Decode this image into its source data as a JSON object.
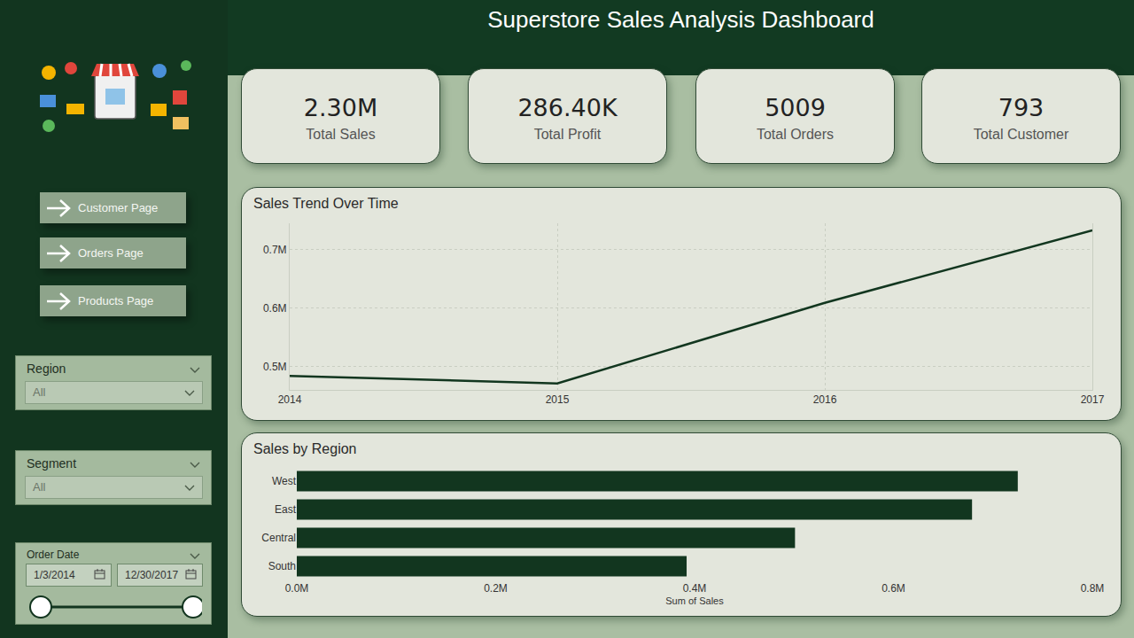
{
  "header": {
    "title": "Superstore Sales Analysis Dashboard"
  },
  "kpis": [
    {
      "value": "2.30M",
      "label": "Total Sales"
    },
    {
      "value": "286.40K",
      "label": "Total Profit"
    },
    {
      "value": "5009",
      "label": "Total Orders"
    },
    {
      "value": "793",
      "label": "Total Customer"
    }
  ],
  "navigation": [
    "Customer Page",
    "Orders Page",
    "Products Page"
  ],
  "filters": [
    {
      "label": "Region",
      "value": "All"
    },
    {
      "label": "Segment",
      "value": "All"
    },
    {
      "label": "Order Date",
      "start": "1/3/2014",
      "end": "12/30/2017"
    }
  ],
  "chart_data": [
    {
      "type": "line",
      "title": "Sales Trend Over Time",
      "x": [
        2014,
        2015,
        2016,
        2017
      ],
      "values": [
        484000,
        471000,
        609000,
        733000
      ],
      "color": "#12361f",
      "xlim": [
        2014,
        2017
      ],
      "xticks": [
        2014,
        2015,
        2016,
        2017
      ],
      "ylim": [
        460000,
        745000
      ],
      "yticks": [
        {
          "value": 500000,
          "label": "0.5M"
        },
        {
          "value": 600000,
          "label": "0.6M"
        },
        {
          "value": 700000,
          "label": "0.7M"
        }
      ],
      "grid": true
    },
    {
      "type": "bar",
      "title": "Sales by Region",
      "orientation": "horizontal",
      "categories": [
        "West",
        "East",
        "Central",
        "South"
      ],
      "values": [
        725000,
        679000,
        501000,
        392000
      ],
      "color": "#12361f",
      "xlabel": "Sum of Sales",
      "xlim": [
        0,
        800000
      ],
      "xticks": [
        {
          "value": 0,
          "label": "0.0M"
        },
        {
          "value": 200000,
          "label": "0.2M"
        },
        {
          "value": 400000,
          "label": "0.4M"
        },
        {
          "value": 600000,
          "label": "0.6M"
        },
        {
          "value": 800000,
          "label": "0.8M"
        }
      ],
      "grid": false
    }
  ]
}
